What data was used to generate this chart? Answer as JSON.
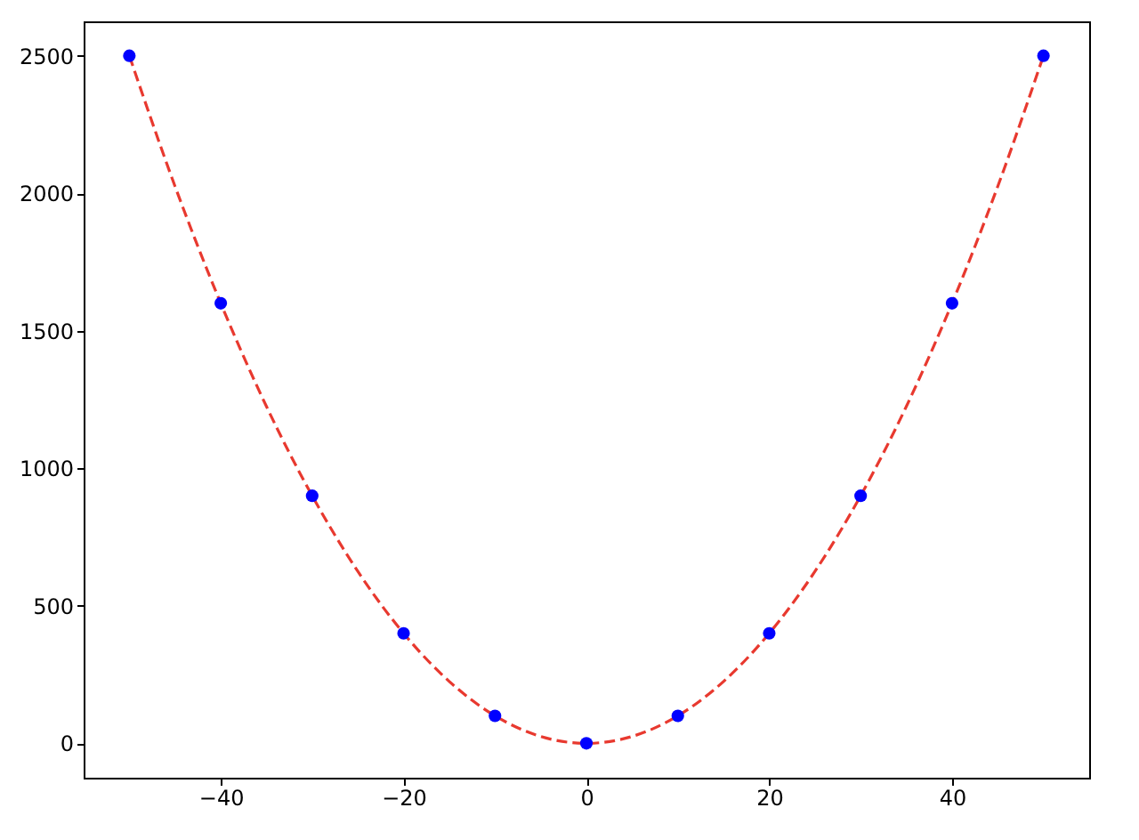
{
  "chart_data": {
    "type": "scatter",
    "xlim": [
      -55,
      55
    ],
    "ylim": [
      -125,
      2625
    ],
    "xticks": [
      -40,
      -20,
      0,
      20,
      40
    ],
    "yticks": [
      0,
      500,
      1000,
      1500,
      2000,
      2500
    ],
    "grid": false,
    "series": [
      {
        "type": "line",
        "color": "#e8392f",
        "line_style": "dashed",
        "marker": "none",
        "x": [
          -50,
          -45,
          -40,
          -35,
          -30,
          -25,
          -20,
          -15,
          -10,
          -5,
          0,
          5,
          10,
          15,
          20,
          25,
          30,
          35,
          40,
          45,
          50
        ],
        "values": [
          2500,
          2025,
          1600,
          1225,
          900,
          625,
          400,
          225,
          100,
          25,
          0,
          25,
          100,
          225,
          400,
          625,
          900,
          1225,
          1600,
          2025,
          2500
        ]
      },
      {
        "color": "#0000ff",
        "marker": "circle",
        "x": [
          -50,
          -40,
          -30,
          -20,
          -10,
          0,
          10,
          20,
          30,
          40,
          50
        ],
        "values": [
          2500,
          1600,
          900,
          400,
          100,
          0,
          100,
          400,
          900,
          1600,
          2500
        ]
      }
    ]
  }
}
